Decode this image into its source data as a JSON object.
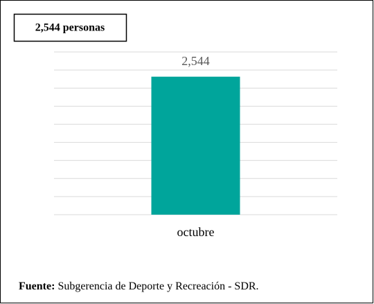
{
  "chart_data": {
    "type": "bar",
    "title": "2,544 personas",
    "categories": [
      "octubre"
    ],
    "values": [
      2544
    ],
    "value_labels": [
      "2,544"
    ],
    "color": "#00a59b",
    "ylim": [
      0,
      3000
    ],
    "yticks": [
      0,
      333,
      667,
      1000,
      1333,
      1667,
      2000,
      2333,
      2667,
      3000
    ],
    "grid": true,
    "source": {
      "label": "Fuente:",
      "text": "Subgerencia de Deporte y Recreación - SDR."
    }
  }
}
